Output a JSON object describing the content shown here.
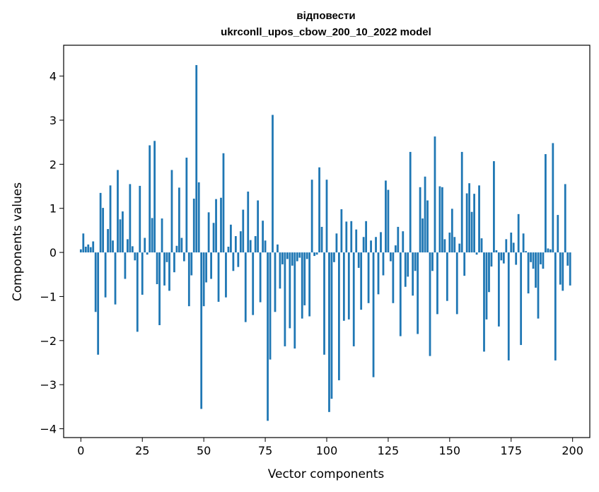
{
  "chart_data": {
    "type": "bar",
    "title": [
      "відповести",
      "ukrconll_upos_cbow_200_10_2022 model"
    ],
    "xlabel": "Vector components",
    "ylabel": "Components values",
    "xlim": [
      -7,
      207
    ],
    "ylim": [
      -4.2,
      4.7
    ],
    "x_ticks": [
      0,
      25,
      50,
      75,
      100,
      125,
      150,
      175,
      200
    ],
    "y_ticks": [
      -4,
      -3,
      -2,
      -1,
      0,
      1,
      2,
      3,
      4
    ],
    "grid": false,
    "bar_color": "#1f77b4",
    "values": [
      0.07,
      0.43,
      0.13,
      0.18,
      0.12,
      0.25,
      -1.35,
      -2.32,
      1.35,
      1.01,
      -1.02,
      0.53,
      1.52,
      0.27,
      -1.18,
      1.87,
      0.75,
      0.93,
      -0.6,
      0.3,
      1.55,
      0.14,
      -0.18,
      -1.8,
      1.51,
      -0.96,
      0.33,
      -0.05,
      2.43,
      0.78,
      2.53,
      -0.72,
      -1.65,
      0.77,
      -0.75,
      -0.22,
      -0.87,
      1.87,
      -0.45,
      0.15,
      1.47,
      0.33,
      -0.2,
      2.15,
      -1.22,
      -0.52,
      1.22,
      4.25,
      1.59,
      -3.55,
      -1.22,
      -0.68,
      0.91,
      -0.6,
      0.67,
      1.21,
      -1.12,
      1.24,
      2.25,
      -1.02,
      0.13,
      0.63,
      -0.42,
      0.37,
      -0.33,
      0.48,
      0.97,
      -1.58,
      1.38,
      0.28,
      -1.42,
      0.37,
      1.18,
      -1.13,
      0.72,
      0.27,
      -3.82,
      -2.43,
      3.12,
      -1.35,
      0.18,
      -0.82,
      -0.27,
      -2.13,
      -0.15,
      -1.72,
      -0.3,
      -2.18,
      -0.2,
      -0.12,
      -1.5,
      -1.2,
      -0.15,
      -1.45,
      1.65,
      -0.08,
      -0.05,
      1.93,
      0.58,
      -2.32,
      1.65,
      -3.62,
      -3.32,
      -0.22,
      0.43,
      -2.9,
      0.98,
      -1.55,
      0.7,
      -1.52,
      0.71,
      -2.13,
      0.52,
      -0.35,
      -1.3,
      0.35,
      0.71,
      -1.15,
      0.27,
      -2.83,
      0.35,
      -0.95,
      0.46,
      -0.52,
      1.63,
      1.42,
      -0.2,
      -1.15,
      0.16,
      0.58,
      -1.9,
      0.48,
      -0.78,
      -0.55,
      2.28,
      -0.98,
      -0.42,
      -1.85,
      1.48,
      0.77,
      1.72,
      1.18,
      -2.35,
      -0.42,
      2.63,
      -1.4,
      1.5,
      1.48,
      0.3,
      -1.1,
      0.45,
      0.99,
      0.35,
      -1.4,
      0.2,
      2.28,
      -0.53,
      1.34,
      1.57,
      0.92,
      1.33,
      -0.05,
      1.52,
      0.32,
      -2.25,
      -1.52,
      -0.9,
      -0.32,
      2.07,
      0.05,
      -1.68,
      -0.18,
      -0.25,
      0.3,
      -2.45,
      0.45,
      0.22,
      -0.28,
      0.87,
      -2.1,
      0.43,
      0.03,
      -0.93,
      -0.22,
      -0.37,
      -0.8,
      -1.5,
      -0.27,
      -0.37,
      2.23,
      0.09,
      0.07,
      2.48,
      -2.45,
      0.85,
      -0.73,
      -0.87,
      1.55,
      -0.3,
      -0.75
    ]
  }
}
